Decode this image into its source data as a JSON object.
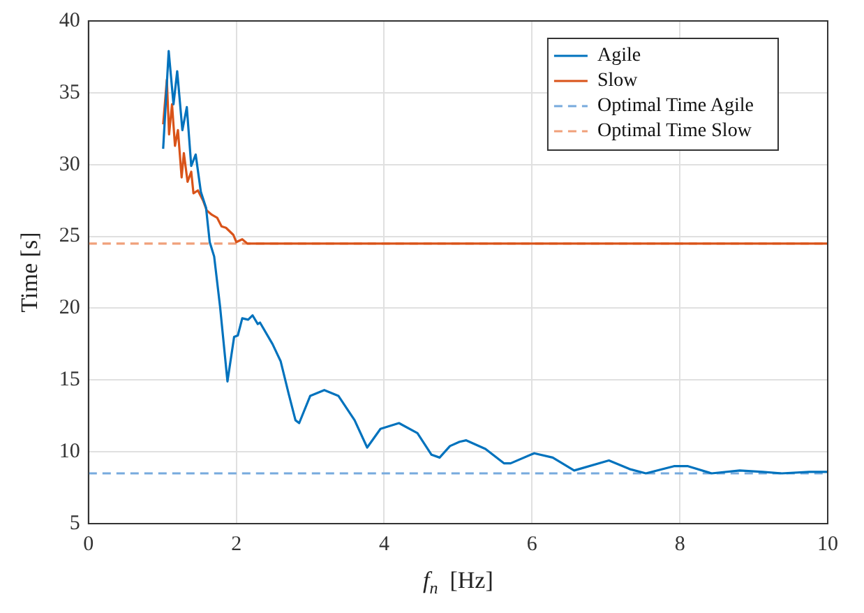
{
  "chart_data": {
    "type": "line",
    "xlabel": "f$_{n}$  [Hz]",
    "ylabel": "Time [s]",
    "xlim": [
      0,
      10
    ],
    "xticks": [
      0,
      2,
      4,
      6,
      8,
      10
    ],
    "ylim": [
      5,
      40
    ],
    "yticks": [
      5,
      10,
      15,
      20,
      25,
      30,
      35,
      40
    ],
    "grid": true,
    "legend": "top right",
    "line_style": "solid",
    "marker": "none",
    "series": [
      {
        "name": "Agile",
        "color": "#0072bd",
        "x": [
          1.01,
          1.085,
          1.15,
          1.2,
          1.27,
          1.33,
          1.39,
          1.45,
          1.52,
          1.59,
          1.64,
          1.7,
          1.78,
          1.88,
          1.97,
          2.02,
          2.08,
          2.16,
          2.22,
          2.29,
          2.32,
          2.49,
          2.6,
          2.71,
          2.8,
          2.85,
          3.0,
          3.19,
          3.38,
          3.6,
          3.77,
          3.95,
          4.2,
          4.45,
          4.64,
          4.75,
          4.89,
          5.02,
          5.11,
          5.37,
          5.62,
          5.71,
          6.03,
          6.28,
          6.57,
          7.04,
          7.32,
          7.54,
          7.92,
          8.11,
          8.43,
          8.81,
          9.12,
          9.38,
          9.75,
          10
        ],
        "values": [
          31.1,
          37.9,
          34.2,
          36.5,
          32.4,
          34.0,
          29.9,
          30.7,
          28.1,
          27.0,
          24.6,
          23.6,
          20.1,
          14.9,
          18.0,
          18.1,
          19.3,
          19.2,
          19.5,
          18.9,
          19.0,
          17.5,
          16.3,
          14.0,
          12.2,
          12.0,
          13.9,
          14.3,
          13.9,
          12.2,
          10.3,
          11.6,
          12.0,
          11.3,
          9.8,
          9.6,
          10.4,
          10.7,
          10.8,
          10.2,
          9.2,
          9.2,
          9.9,
          9.6,
          8.7,
          9.4,
          8.8,
          8.5,
          9.0,
          9.0,
          8.5,
          8.7,
          8.6,
          8.5,
          8.6,
          8.6
        ]
      },
      {
        "name": "Slow",
        "color": "#d95319",
        "x": [
          1.01,
          1.06,
          1.09,
          1.13,
          1.17,
          1.21,
          1.26,
          1.29,
          1.34,
          1.39,
          1.42,
          1.48,
          1.55,
          1.6,
          1.67,
          1.74,
          1.8,
          1.86,
          1.96,
          2.0,
          2.08,
          2.15,
          10
        ],
        "values": [
          32.8,
          35.9,
          32.1,
          34.2,
          31.3,
          32.4,
          29.1,
          30.8,
          28.8,
          29.5,
          28.0,
          28.2,
          27.5,
          26.8,
          26.5,
          26.3,
          25.7,
          25.6,
          25.1,
          24.6,
          24.8,
          24.5,
          24.5
        ]
      }
    ],
    "ref_lines": [
      {
        "axis": "y",
        "value": 8.5,
        "label": "Optimal Time Agile",
        "color": "#77aadd",
        "line_style": "dashed"
      },
      {
        "axis": "y",
        "value": 24.5,
        "label": "Optimal Time Slow",
        "color": "#f0a07a",
        "line_style": "dashed"
      }
    ]
  }
}
